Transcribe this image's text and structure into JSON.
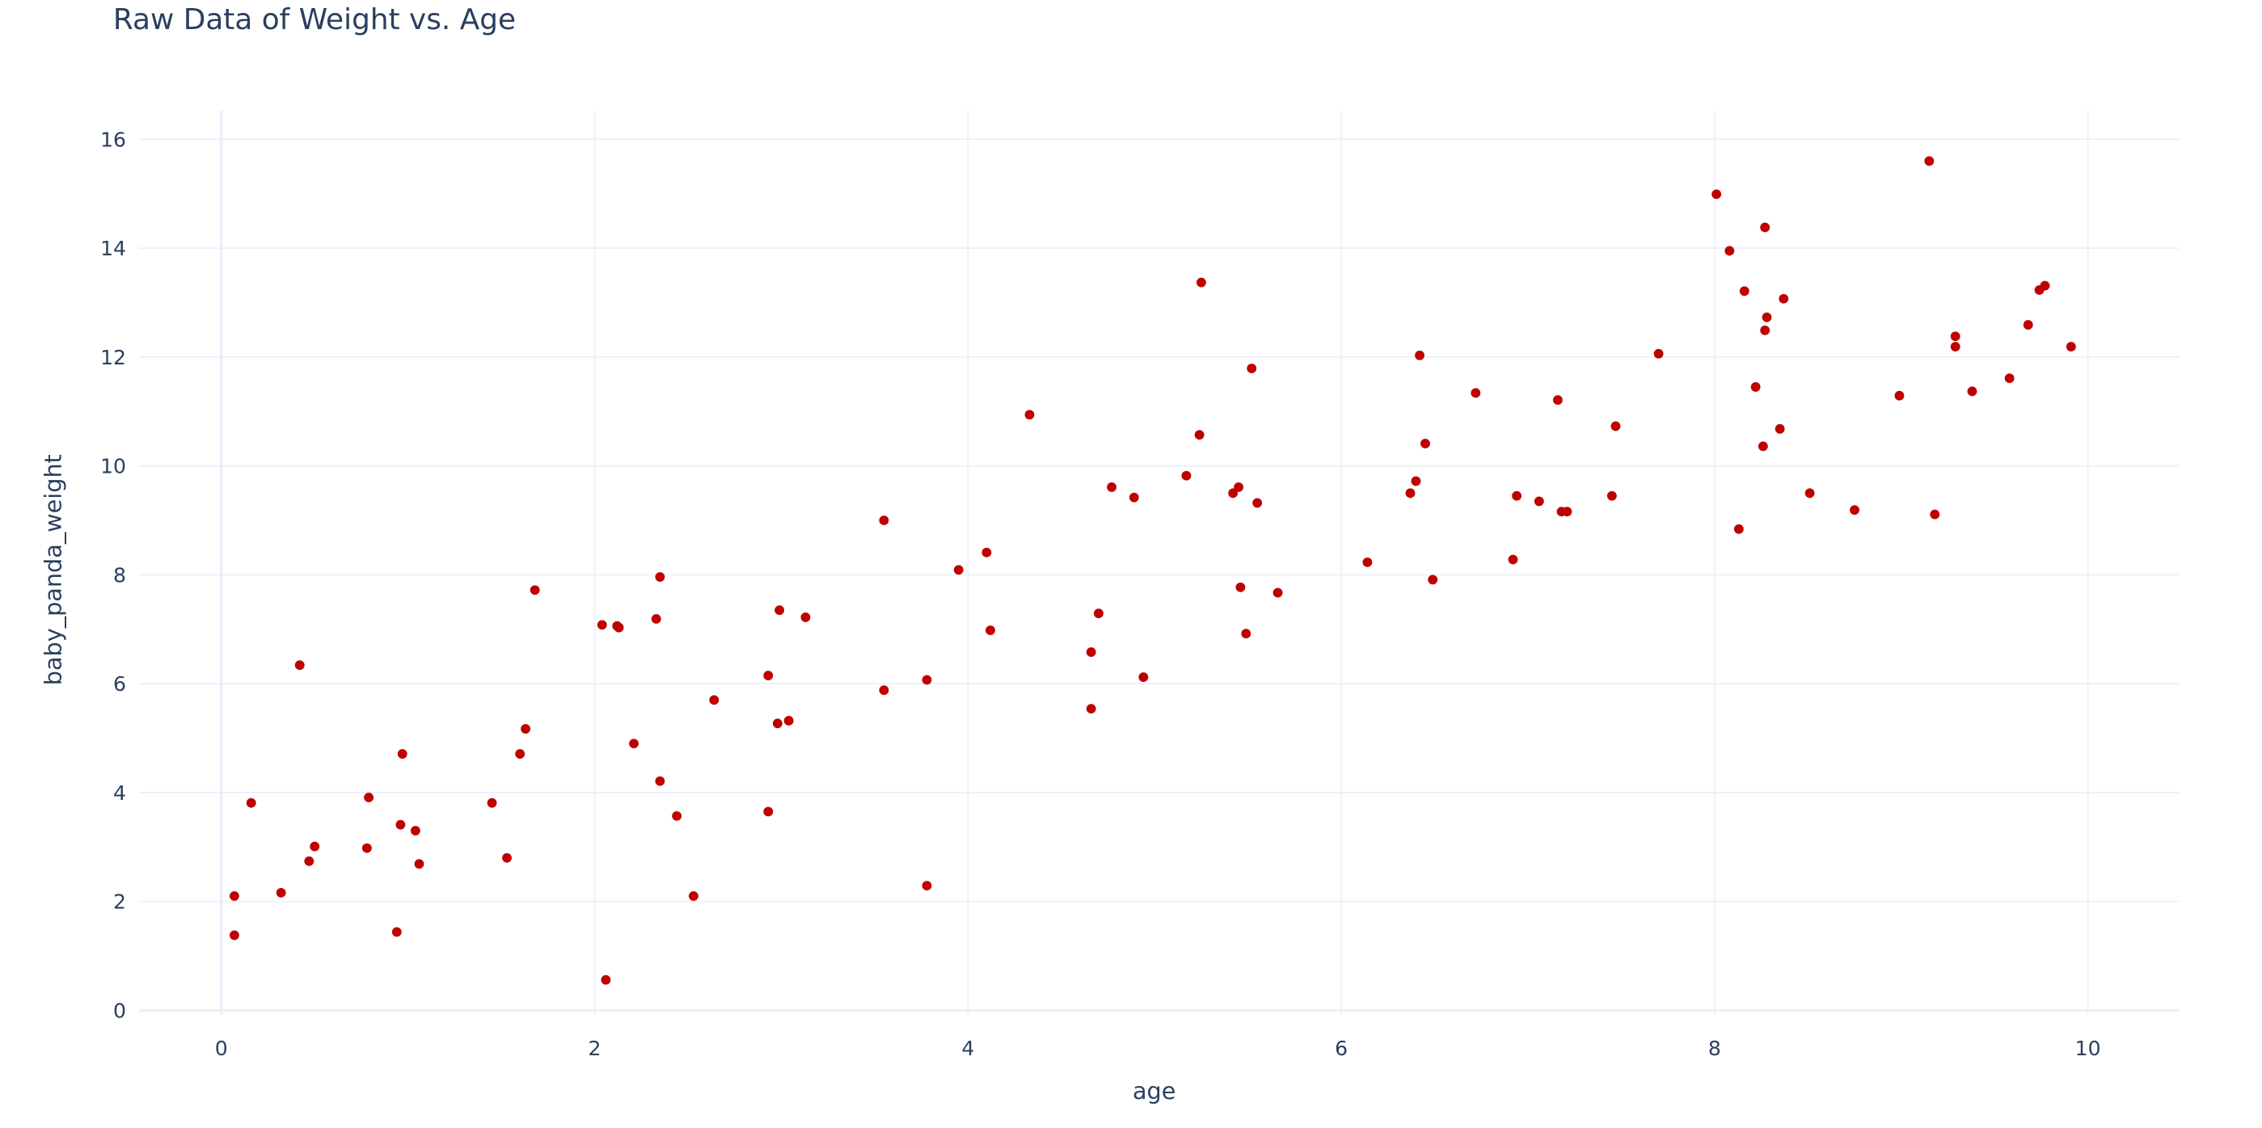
{
  "chart_data": {
    "type": "scatter",
    "title": "Raw Data of Weight vs. Age",
    "xlabel": "age",
    "ylabel": "baby_panda_weight",
    "xlim": [
      -0.44,
      10.49
    ],
    "ylim": [
      -0.08,
      16.53
    ],
    "xticks": [
      0,
      2,
      4,
      6,
      8,
      10
    ],
    "yticks": [
      0,
      2,
      4,
      6,
      8,
      10,
      12,
      14,
      16
    ],
    "grid": true,
    "legend": "none",
    "marker_color": "#bf0000",
    "grid_color": "#ebf0f8",
    "text_color": "#2a3f5f",
    "points": [
      [
        0.07,
        1.38
      ],
      [
        0.07,
        2.1
      ],
      [
        0.16,
        3.81
      ],
      [
        0.32,
        2.16
      ],
      [
        0.42,
        6.34
      ],
      [
        0.47,
        2.74
      ],
      [
        0.5,
        3.01
      ],
      [
        0.78,
        2.98
      ],
      [
        0.79,
        3.91
      ],
      [
        0.94,
        1.44
      ],
      [
        0.96,
        3.41
      ],
      [
        0.97,
        4.71
      ],
      [
        1.04,
        3.3
      ],
      [
        1.06,
        2.69
      ],
      [
        1.45,
        3.81
      ],
      [
        1.53,
        2.8
      ],
      [
        1.6,
        4.71
      ],
      [
        1.63,
        5.17
      ],
      [
        1.68,
        7.72
      ],
      [
        2.04,
        7.08
      ],
      [
        2.12,
        7.06
      ],
      [
        2.13,
        7.03
      ],
      [
        2.06,
        0.56
      ],
      [
        2.21,
        4.9
      ],
      [
        2.33,
        7.19
      ],
      [
        2.35,
        7.96
      ],
      [
        2.35,
        4.21
      ],
      [
        2.44,
        3.57
      ],
      [
        2.53,
        2.1
      ],
      [
        2.64,
        5.7
      ],
      [
        2.93,
        6.15
      ],
      [
        2.93,
        3.65
      ],
      [
        2.98,
        5.27
      ],
      [
        2.99,
        7.35
      ],
      [
        3.04,
        5.32
      ],
      [
        3.13,
        7.22
      ],
      [
        3.55,
        9.0
      ],
      [
        3.55,
        5.88
      ],
      [
        3.78,
        6.07
      ],
      [
        3.78,
        2.29
      ],
      [
        3.95,
        8.09
      ],
      [
        4.1,
        8.41
      ],
      [
        4.12,
        6.98
      ],
      [
        4.33,
        10.94
      ],
      [
        4.66,
        6.58
      ],
      [
        4.66,
        5.54
      ],
      [
        4.7,
        7.29
      ],
      [
        4.77,
        9.61
      ],
      [
        4.89,
        9.42
      ],
      [
        4.94,
        6.12
      ],
      [
        5.17,
        9.82
      ],
      [
        5.25,
        13.37
      ],
      [
        5.24,
        10.57
      ],
      [
        5.42,
        9.5
      ],
      [
        5.45,
        9.61
      ],
      [
        5.46,
        7.77
      ],
      [
        5.49,
        6.92
      ],
      [
        5.52,
        11.79
      ],
      [
        5.55,
        9.32
      ],
      [
        5.66,
        7.67
      ],
      [
        6.14,
        8.23
      ],
      [
        6.37,
        9.5
      ],
      [
        6.4,
        9.72
      ],
      [
        6.42,
        12.03
      ],
      [
        6.45,
        10.41
      ],
      [
        6.49,
        7.91
      ],
      [
        6.72,
        11.34
      ],
      [
        6.92,
        8.28
      ],
      [
        6.94,
        9.45
      ],
      [
        7.06,
        9.35
      ],
      [
        7.16,
        11.21
      ],
      [
        7.18,
        9.16
      ],
      [
        7.21,
        9.16
      ],
      [
        7.45,
        9.45
      ],
      [
        7.47,
        10.73
      ],
      [
        7.7,
        12.06
      ],
      [
        8.01,
        14.99
      ],
      [
        8.08,
        13.95
      ],
      [
        8.13,
        8.84
      ],
      [
        8.16,
        13.21
      ],
      [
        8.22,
        11.45
      ],
      [
        8.26,
        10.36
      ],
      [
        8.27,
        12.49
      ],
      [
        8.27,
        14.38
      ],
      [
        8.28,
        12.73
      ],
      [
        8.35,
        10.68
      ],
      [
        8.37,
        13.07
      ],
      [
        8.51,
        9.5
      ],
      [
        8.75,
        9.19
      ],
      [
        8.99,
        11.29
      ],
      [
        9.15,
        15.6
      ],
      [
        9.18,
        9.11
      ],
      [
        9.29,
        12.38
      ],
      [
        9.29,
        12.19
      ],
      [
        9.38,
        11.37
      ],
      [
        9.58,
        11.61
      ],
      [
        9.68,
        12.59
      ],
      [
        9.74,
        13.23
      ],
      [
        9.77,
        13.31
      ],
      [
        9.91,
        12.19
      ]
    ]
  }
}
